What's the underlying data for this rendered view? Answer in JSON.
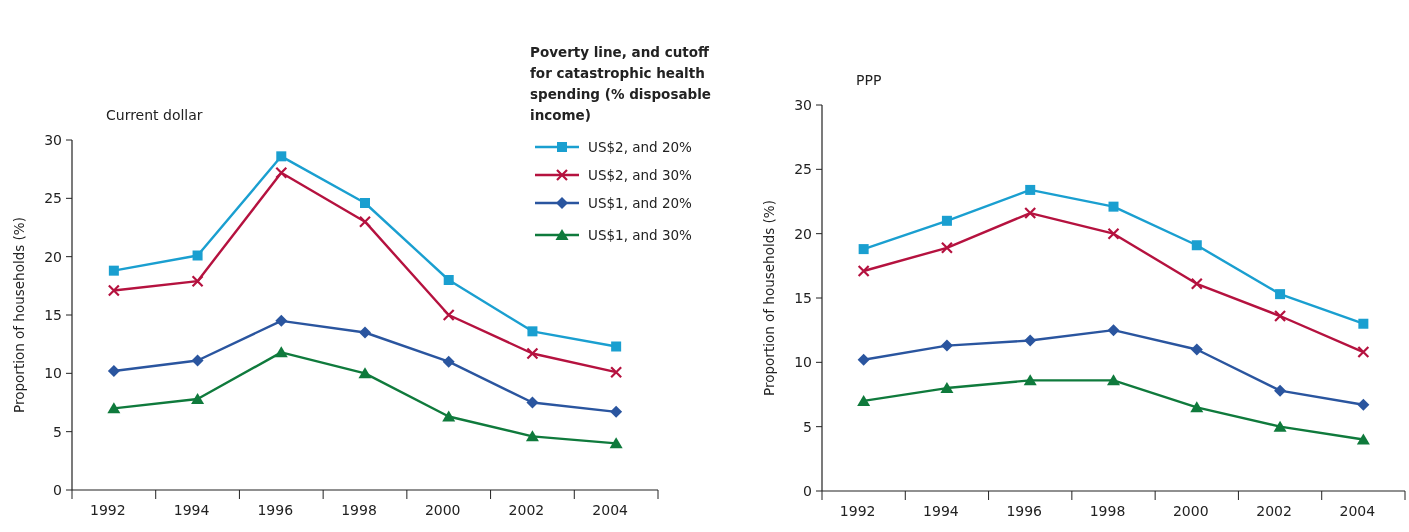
{
  "chart_data": [
    {
      "type": "line",
      "title": "Current dollar",
      "ylabel": "Proportion of households (%)",
      "legend_title": "Poverty line, and cutoff for catastrophic health spending (% disposable income)",
      "legend": "top right",
      "categories": [
        "1992",
        "1994",
        "1996",
        "1998",
        "2000",
        "2002",
        "2004"
      ],
      "ylim": [
        0,
        30
      ],
      "yticks": [
        0,
        5,
        10,
        15,
        20,
        25,
        30
      ],
      "grid": false,
      "series": [
        {
          "name": "US$2, and 20%",
          "color": "#1a9fd0",
          "marker": "square",
          "values": [
            18.8,
            20.1,
            28.6,
            24.6,
            18.0,
            13.6,
            12.3
          ]
        },
        {
          "name": "US$2, and 30%",
          "color": "#b5123f",
          "marker": "cross",
          "values": [
            17.1,
            17.9,
            27.2,
            23.0,
            15.0,
            11.7,
            10.1
          ]
        },
        {
          "name": "US$1, and 20%",
          "color": "#2a559f",
          "marker": "diamond",
          "values": [
            10.2,
            11.1,
            14.5,
            13.5,
            11.0,
            7.5,
            6.7
          ]
        },
        {
          "name": "US$1, and 30%",
          "color": "#0f7a3c",
          "marker": "triangle",
          "values": [
            7.0,
            7.8,
            11.8,
            10.0,
            6.3,
            4.6,
            4.0
          ]
        }
      ]
    },
    {
      "type": "line",
      "title": "PPP",
      "ylabel": "Proportion of households (%)",
      "categories": [
        "1992",
        "1994",
        "1996",
        "1998",
        "2000",
        "2002",
        "2004"
      ],
      "ylim": [
        0,
        30
      ],
      "yticks": [
        0,
        5,
        10,
        15,
        20,
        25,
        30
      ],
      "grid": false,
      "series": [
        {
          "color": "#1a9fd0",
          "marker": "square",
          "values": [
            18.8,
            21.0,
            23.4,
            22.1,
            19.1,
            15.3,
            13.0
          ]
        },
        {
          "color": "#b5123f",
          "marker": "cross",
          "values": [
            17.1,
            18.9,
            21.6,
            20.0,
            16.1,
            13.6,
            10.8
          ]
        },
        {
          "color": "#2a559f",
          "marker": "diamond",
          "values": [
            10.2,
            11.3,
            11.7,
            12.5,
            11.0,
            7.8,
            6.7
          ]
        },
        {
          "color": "#0f7a3c",
          "marker": "triangle",
          "values": [
            7.0,
            8.0,
            8.6,
            8.6,
            6.5,
            5.0,
            4.0
          ]
        }
      ]
    }
  ]
}
